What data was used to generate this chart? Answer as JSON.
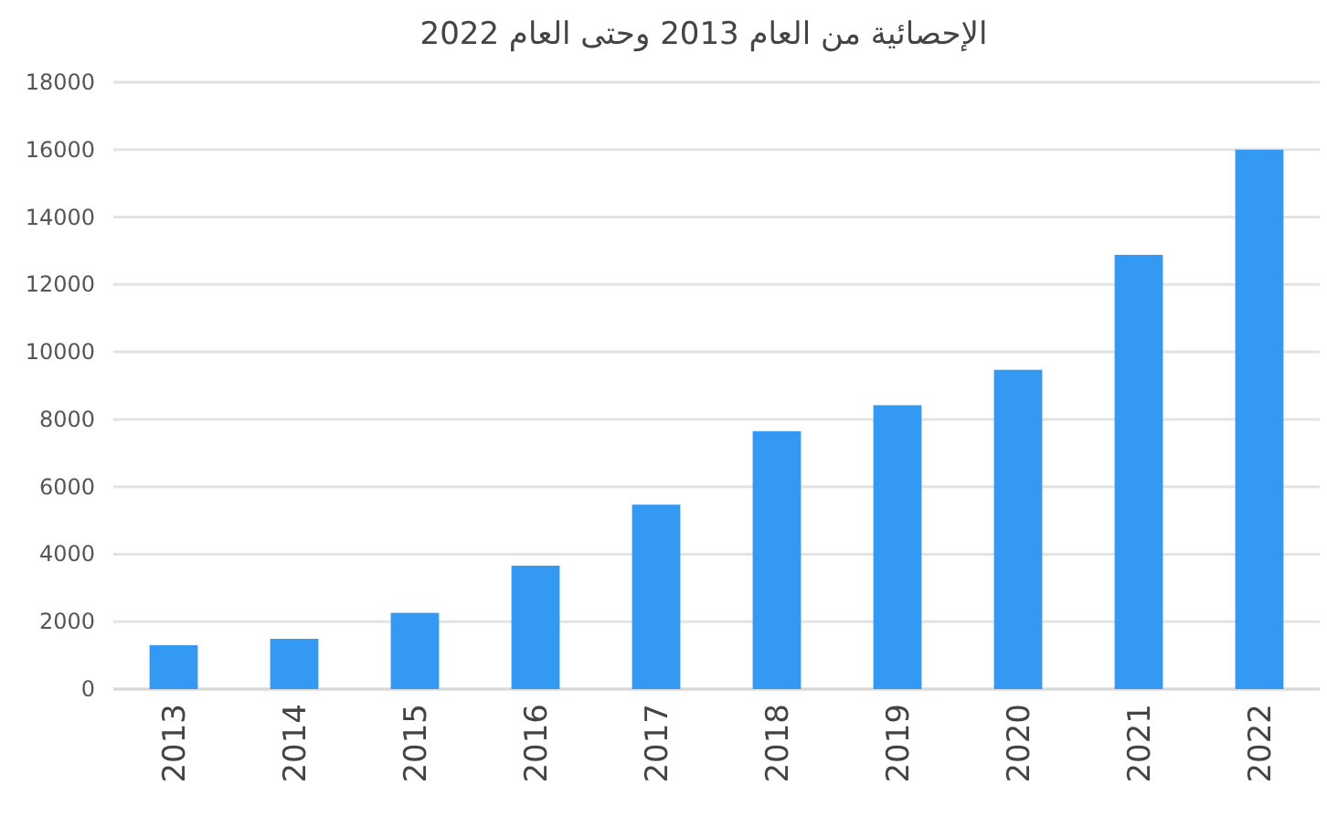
{
  "chart_data": {
    "type": "bar",
    "title": "الإحصائية من العام 2013 وحتى العام 2022",
    "categories": [
      "2013",
      "2014",
      "2015",
      "2016",
      "2017",
      "2018",
      "2019",
      "2020",
      "2021",
      "2022"
    ],
    "values": [
      1300,
      1490,
      2260,
      3660,
      5470,
      7650,
      8420,
      9470,
      12880,
      16000
    ],
    "color": "#3399f3",
    "ylim": [
      0,
      18000
    ],
    "yticks": [
      0,
      2000,
      4000,
      6000,
      8000,
      10000,
      12000,
      14000,
      16000,
      18000
    ],
    "grid": "y"
  }
}
